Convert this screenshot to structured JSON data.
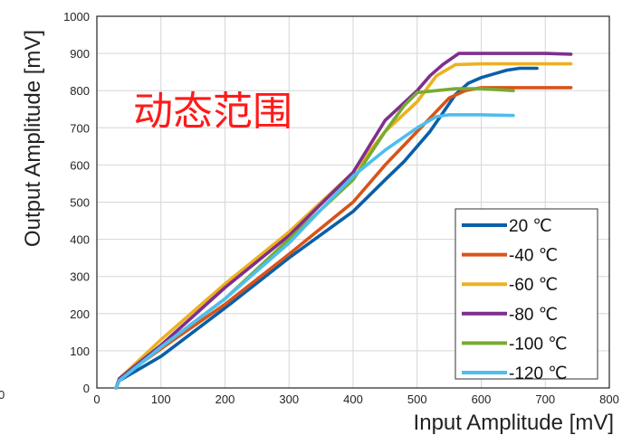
{
  "chart_data": {
    "type": "line",
    "xlabel": "Input Amplitude [mV]",
    "ylabel": "Output Amplitude [mV]",
    "xlim": [
      0,
      800
    ],
    "ylim": [
      0,
      1000
    ],
    "x_ticks": [
      "0",
      "100",
      "200",
      "300",
      "400",
      "500",
      "600",
      "700",
      "800"
    ],
    "y_ticks": [
      "0",
      "100",
      "200",
      "300",
      "400",
      "500",
      "600",
      "700",
      "800",
      "900",
      "1000"
    ],
    "stray_label": "0",
    "grid": true,
    "legend_position": "bottom-right",
    "annotation": {
      "text": "动态范围",
      "color": "#ff1a1a"
    },
    "series": [
      {
        "name": "20 ℃",
        "color": "#0a5fa8",
        "points": [
          [
            30,
            0
          ],
          [
            35,
            20
          ],
          [
            100,
            85
          ],
          [
            200,
            215
          ],
          [
            300,
            350
          ],
          [
            400,
            475
          ],
          [
            450,
            560
          ],
          [
            480,
            610
          ],
          [
            500,
            650
          ],
          [
            520,
            690
          ],
          [
            540,
            740
          ],
          [
            560,
            790
          ],
          [
            580,
            820
          ],
          [
            600,
            835
          ],
          [
            620,
            845
          ],
          [
            640,
            855
          ],
          [
            660,
            860
          ],
          [
            687,
            860
          ]
        ]
      },
      {
        "name": "-40 ℃",
        "color": "#d95319",
        "points": [
          [
            30,
            0
          ],
          [
            35,
            25
          ],
          [
            120,
            130
          ],
          [
            200,
            225
          ],
          [
            300,
            360
          ],
          [
            400,
            500
          ],
          [
            450,
            600
          ],
          [
            500,
            690
          ],
          [
            550,
            780
          ],
          [
            575,
            800
          ],
          [
            600,
            808
          ],
          [
            650,
            808
          ],
          [
            700,
            808
          ],
          [
            740,
            808
          ]
        ]
      },
      {
        "name": "-60 ℃",
        "color": "#edb120",
        "points": [
          [
            30,
            0
          ],
          [
            35,
            25
          ],
          [
            100,
            130
          ],
          [
            200,
            280
          ],
          [
            300,
            420
          ],
          [
            400,
            580
          ],
          [
            450,
            690
          ],
          [
            500,
            770
          ],
          [
            530,
            840
          ],
          [
            560,
            870
          ],
          [
            600,
            872
          ],
          [
            650,
            872
          ],
          [
            700,
            872
          ],
          [
            740,
            872
          ]
        ]
      },
      {
        "name": "-80 ℃",
        "color": "#7e2f8e",
        "points": [
          [
            30,
            0
          ],
          [
            35,
            25
          ],
          [
            100,
            115
          ],
          [
            200,
            270
          ],
          [
            300,
            410
          ],
          [
            400,
            580
          ],
          [
            450,
            720
          ],
          [
            500,
            800
          ],
          [
            520,
            840
          ],
          [
            540,
            870
          ],
          [
            565,
            900
          ],
          [
            600,
            900
          ],
          [
            650,
            900
          ],
          [
            700,
            900
          ],
          [
            740,
            898
          ]
        ]
      },
      {
        "name": "-100 ℃",
        "color": "#77ac30",
        "points": [
          [
            30,
            0
          ],
          [
            35,
            20
          ],
          [
            100,
            110
          ],
          [
            200,
            240
          ],
          [
            300,
            400
          ],
          [
            400,
            560
          ],
          [
            450,
            690
          ],
          [
            480,
            760
          ],
          [
            500,
            795
          ],
          [
            530,
            800
          ],
          [
            560,
            805
          ],
          [
            600,
            805
          ],
          [
            650,
            800
          ]
        ]
      },
      {
        "name": "-120 ℃",
        "color": "#4dbeee",
        "points": [
          [
            30,
            0
          ],
          [
            35,
            20
          ],
          [
            100,
            110
          ],
          [
            200,
            240
          ],
          [
            300,
            390
          ],
          [
            400,
            570
          ],
          [
            450,
            640
          ],
          [
            500,
            700
          ],
          [
            530,
            730
          ],
          [
            550,
            735
          ],
          [
            600,
            735
          ],
          [
            650,
            733
          ]
        ]
      }
    ]
  }
}
